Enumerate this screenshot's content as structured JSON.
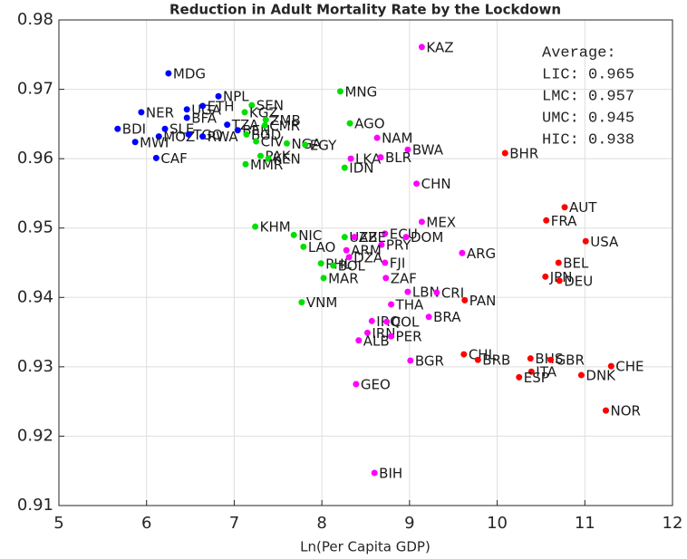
{
  "chart_data": {
    "type": "scatter",
    "title": "Reduction in Adult Mortality Rate by the Lockdown",
    "x_label": "Ln(Per Capita GDP)",
    "xlim": [
      5,
      12
    ],
    "xticks": [
      5,
      6,
      7,
      8,
      9,
      10,
      11,
      12
    ],
    "ylim": [
      0.91,
      0.98
    ],
    "yticks": [
      0.91,
      0.92,
      0.93,
      0.94,
      0.95,
      0.96,
      0.97,
      0.98
    ],
    "grid": true,
    "annotation": [
      "Average:",
      "LIC: 0.965",
      "LMC: 0.957",
      "UMC: 0.945",
      "HIC: 0.938"
    ],
    "series": [
      {
        "color": "#0000ff",
        "labels": [
          "MDG",
          "NPL",
          "UGA",
          "ETH",
          "NER",
          "BFA",
          "TZA",
          "BDI",
          "SLE",
          "BEN",
          "MOZ",
          "TGO",
          "RWA",
          "MWI",
          "CAF"
        ],
        "x": [
          6.25,
          6.82,
          6.46,
          6.64,
          5.94,
          6.46,
          6.92,
          5.67,
          6.21,
          7.04,
          6.14,
          6.48,
          6.64,
          5.87,
          6.11
        ],
        "values": [
          0.9723,
          0.969,
          0.9671,
          0.9676,
          0.9667,
          0.9659,
          0.9649,
          0.9643,
          0.9643,
          0.9641,
          0.9632,
          0.9635,
          0.9632,
          0.9624,
          0.9601
        ]
      },
      {
        "color": "#00e000",
        "labels": [
          "MNG",
          "SEN",
          "KGZ",
          "ZMB",
          "CMR",
          "AGO",
          "BGD",
          "CIV",
          "NGA",
          "EGY",
          "PAK",
          "KEN",
          "MMR",
          "IDN",
          "KHM",
          "NIC",
          "LAO",
          "UZB",
          "PHL",
          "BOL",
          "MAR",
          "VNM"
        ],
        "x": [
          8.21,
          7.2,
          7.12,
          7.36,
          7.35,
          8.32,
          7.14,
          7.25,
          7.6,
          7.81,
          7.3,
          7.39,
          7.13,
          8.26,
          7.24,
          7.68,
          7.79,
          8.26,
          7.99,
          8.13,
          8.02,
          7.77
        ],
        "values": [
          0.9697,
          0.9677,
          0.9667,
          0.9656,
          0.9648,
          0.9651,
          0.9635,
          0.9625,
          0.9622,
          0.962,
          0.9604,
          0.96,
          0.9592,
          0.9587,
          0.9502,
          0.949,
          0.9473,
          0.9487,
          0.9449,
          0.9446,
          0.9428,
          0.9393
        ]
      },
      {
        "color": "#ff00ff",
        "labels": [
          "KAZ",
          "NAM",
          "BWA",
          "LKA",
          "BLR",
          "CHN",
          "MEX",
          "ECU",
          "DOM",
          "AZE",
          "PRY",
          "ARM",
          "DZA",
          "FJI",
          "ARG",
          "ZAF",
          "LBN",
          "CRI",
          "THA",
          "BRA",
          "IRQ",
          "COL",
          "IRN",
          "PER",
          "ALB",
          "BGR",
          "GEO",
          "BIH"
        ],
        "x": [
          9.14,
          8.63,
          8.98,
          8.33,
          8.67,
          9.08,
          9.14,
          8.72,
          8.96,
          8.37,
          8.68,
          8.28,
          8.31,
          8.72,
          9.6,
          8.73,
          8.98,
          9.31,
          8.79,
          9.22,
          8.57,
          8.74,
          8.52,
          8.79,
          8.42,
          9.01,
          8.39,
          8.6
        ],
        "values": [
          0.9761,
          0.963,
          0.9613,
          0.96,
          0.9602,
          0.9564,
          0.9509,
          0.9492,
          0.9487,
          0.9487,
          0.9476,
          0.9468,
          0.9458,
          0.945,
          0.9464,
          0.9428,
          0.9408,
          0.9407,
          0.939,
          0.9372,
          0.9366,
          0.9365,
          0.9349,
          0.9344,
          0.9338,
          0.9309,
          0.9275,
          0.9147
        ]
      },
      {
        "color": "#ff0000",
        "labels": [
          "BHR",
          "AUT",
          "FRA",
          "USA",
          "BEL",
          "JPN",
          "DEU",
          "PAN",
          "CHL",
          "BRB",
          "BHS",
          "GBR",
          "CHE",
          "ITA",
          "ESP",
          "DNK",
          "NOR"
        ],
        "x": [
          10.09,
          10.77,
          10.56,
          11.01,
          10.7,
          10.55,
          10.71,
          9.63,
          9.62,
          9.78,
          10.38,
          10.61,
          11.3,
          10.39,
          10.25,
          10.96,
          11.24
        ],
        "values": [
          0.9608,
          0.953,
          0.9511,
          0.9481,
          0.945,
          0.943,
          0.9424,
          0.9396,
          0.9318,
          0.931,
          0.9312,
          0.931,
          0.9301,
          0.9293,
          0.9285,
          0.9288,
          0.9237
        ]
      }
    ]
  }
}
